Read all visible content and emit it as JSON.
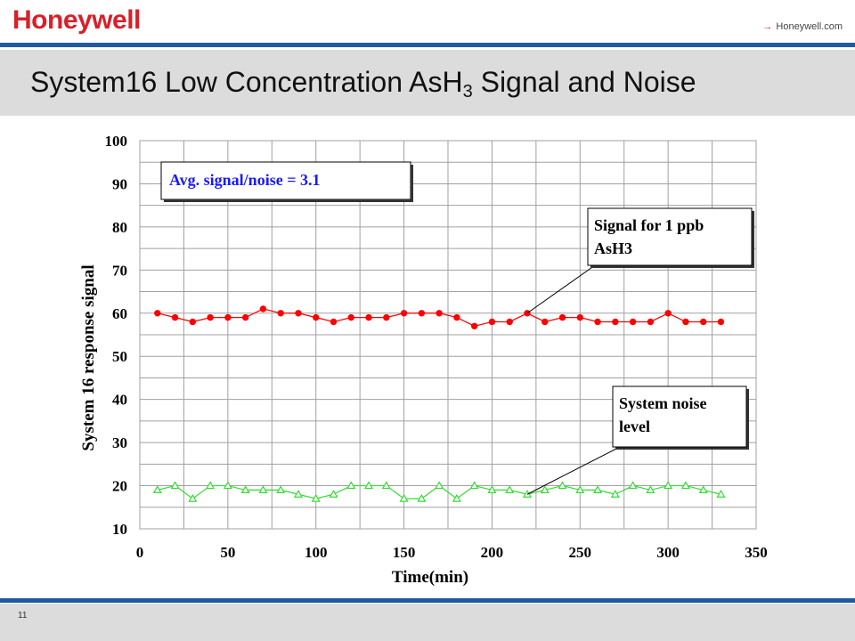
{
  "header": {
    "logo": "Honeywell",
    "link_arrow": "→",
    "link_text": "Honeywell.com"
  },
  "title": {
    "main": "System16 Low Concentration AsH",
    "subscript": "3",
    "rest": " Signal and Noise"
  },
  "footer": {
    "page_number": "11"
  },
  "colors": {
    "signal": "#ff0000",
    "noise": "#33dd33",
    "brand_red": "#d8202a",
    "rule_blue": "#1f5a9e",
    "annotation_blue": "#1a1aff"
  },
  "chart_data": {
    "type": "line",
    "xlabel": "Time(min)",
    "ylabel": "System 16 response signal",
    "xlim": [
      0,
      350
    ],
    "ylim": [
      10,
      100
    ],
    "xticks": [
      0,
      50,
      100,
      150,
      200,
      250,
      300,
      350
    ],
    "yticks": [
      10,
      20,
      30,
      40,
      50,
      60,
      70,
      80,
      90,
      100
    ],
    "grid": true,
    "x": [
      10,
      20,
      30,
      40,
      50,
      60,
      70,
      80,
      90,
      100,
      110,
      120,
      130,
      140,
      150,
      160,
      170,
      180,
      190,
      200,
      210,
      220,
      230,
      240,
      250,
      260,
      270,
      280,
      290,
      300,
      310,
      320,
      330
    ],
    "series": [
      {
        "marker": "circle",
        "values": [
          60,
          59,
          58,
          59,
          59,
          59,
          61,
          60,
          60,
          59,
          58,
          59,
          59,
          59,
          60,
          60,
          60,
          59,
          57,
          58,
          58,
          60,
          58,
          59,
          59,
          58,
          58,
          58,
          58,
          60,
          58,
          58,
          58
        ]
      },
      {
        "marker": "triangle",
        "values": [
          19,
          20,
          17,
          20,
          20,
          19,
          19,
          19,
          18,
          17,
          18,
          20,
          20,
          20,
          17,
          17,
          20,
          17,
          20,
          19,
          19,
          18,
          19,
          20,
          19,
          19,
          18,
          20,
          19,
          20,
          20,
          19,
          18
        ]
      }
    ],
    "annotations": [
      {
        "text": "Avg. signal/noise = 3.1"
      },
      {
        "text_line1": "Signal for 1 ppb",
        "text_line2": "AsH3",
        "points_to_x": 220,
        "points_to_y": 60
      },
      {
        "text_line1": "System noise",
        "text_line2": "level",
        "points_to_x": 220,
        "points_to_y": 18
      }
    ]
  }
}
